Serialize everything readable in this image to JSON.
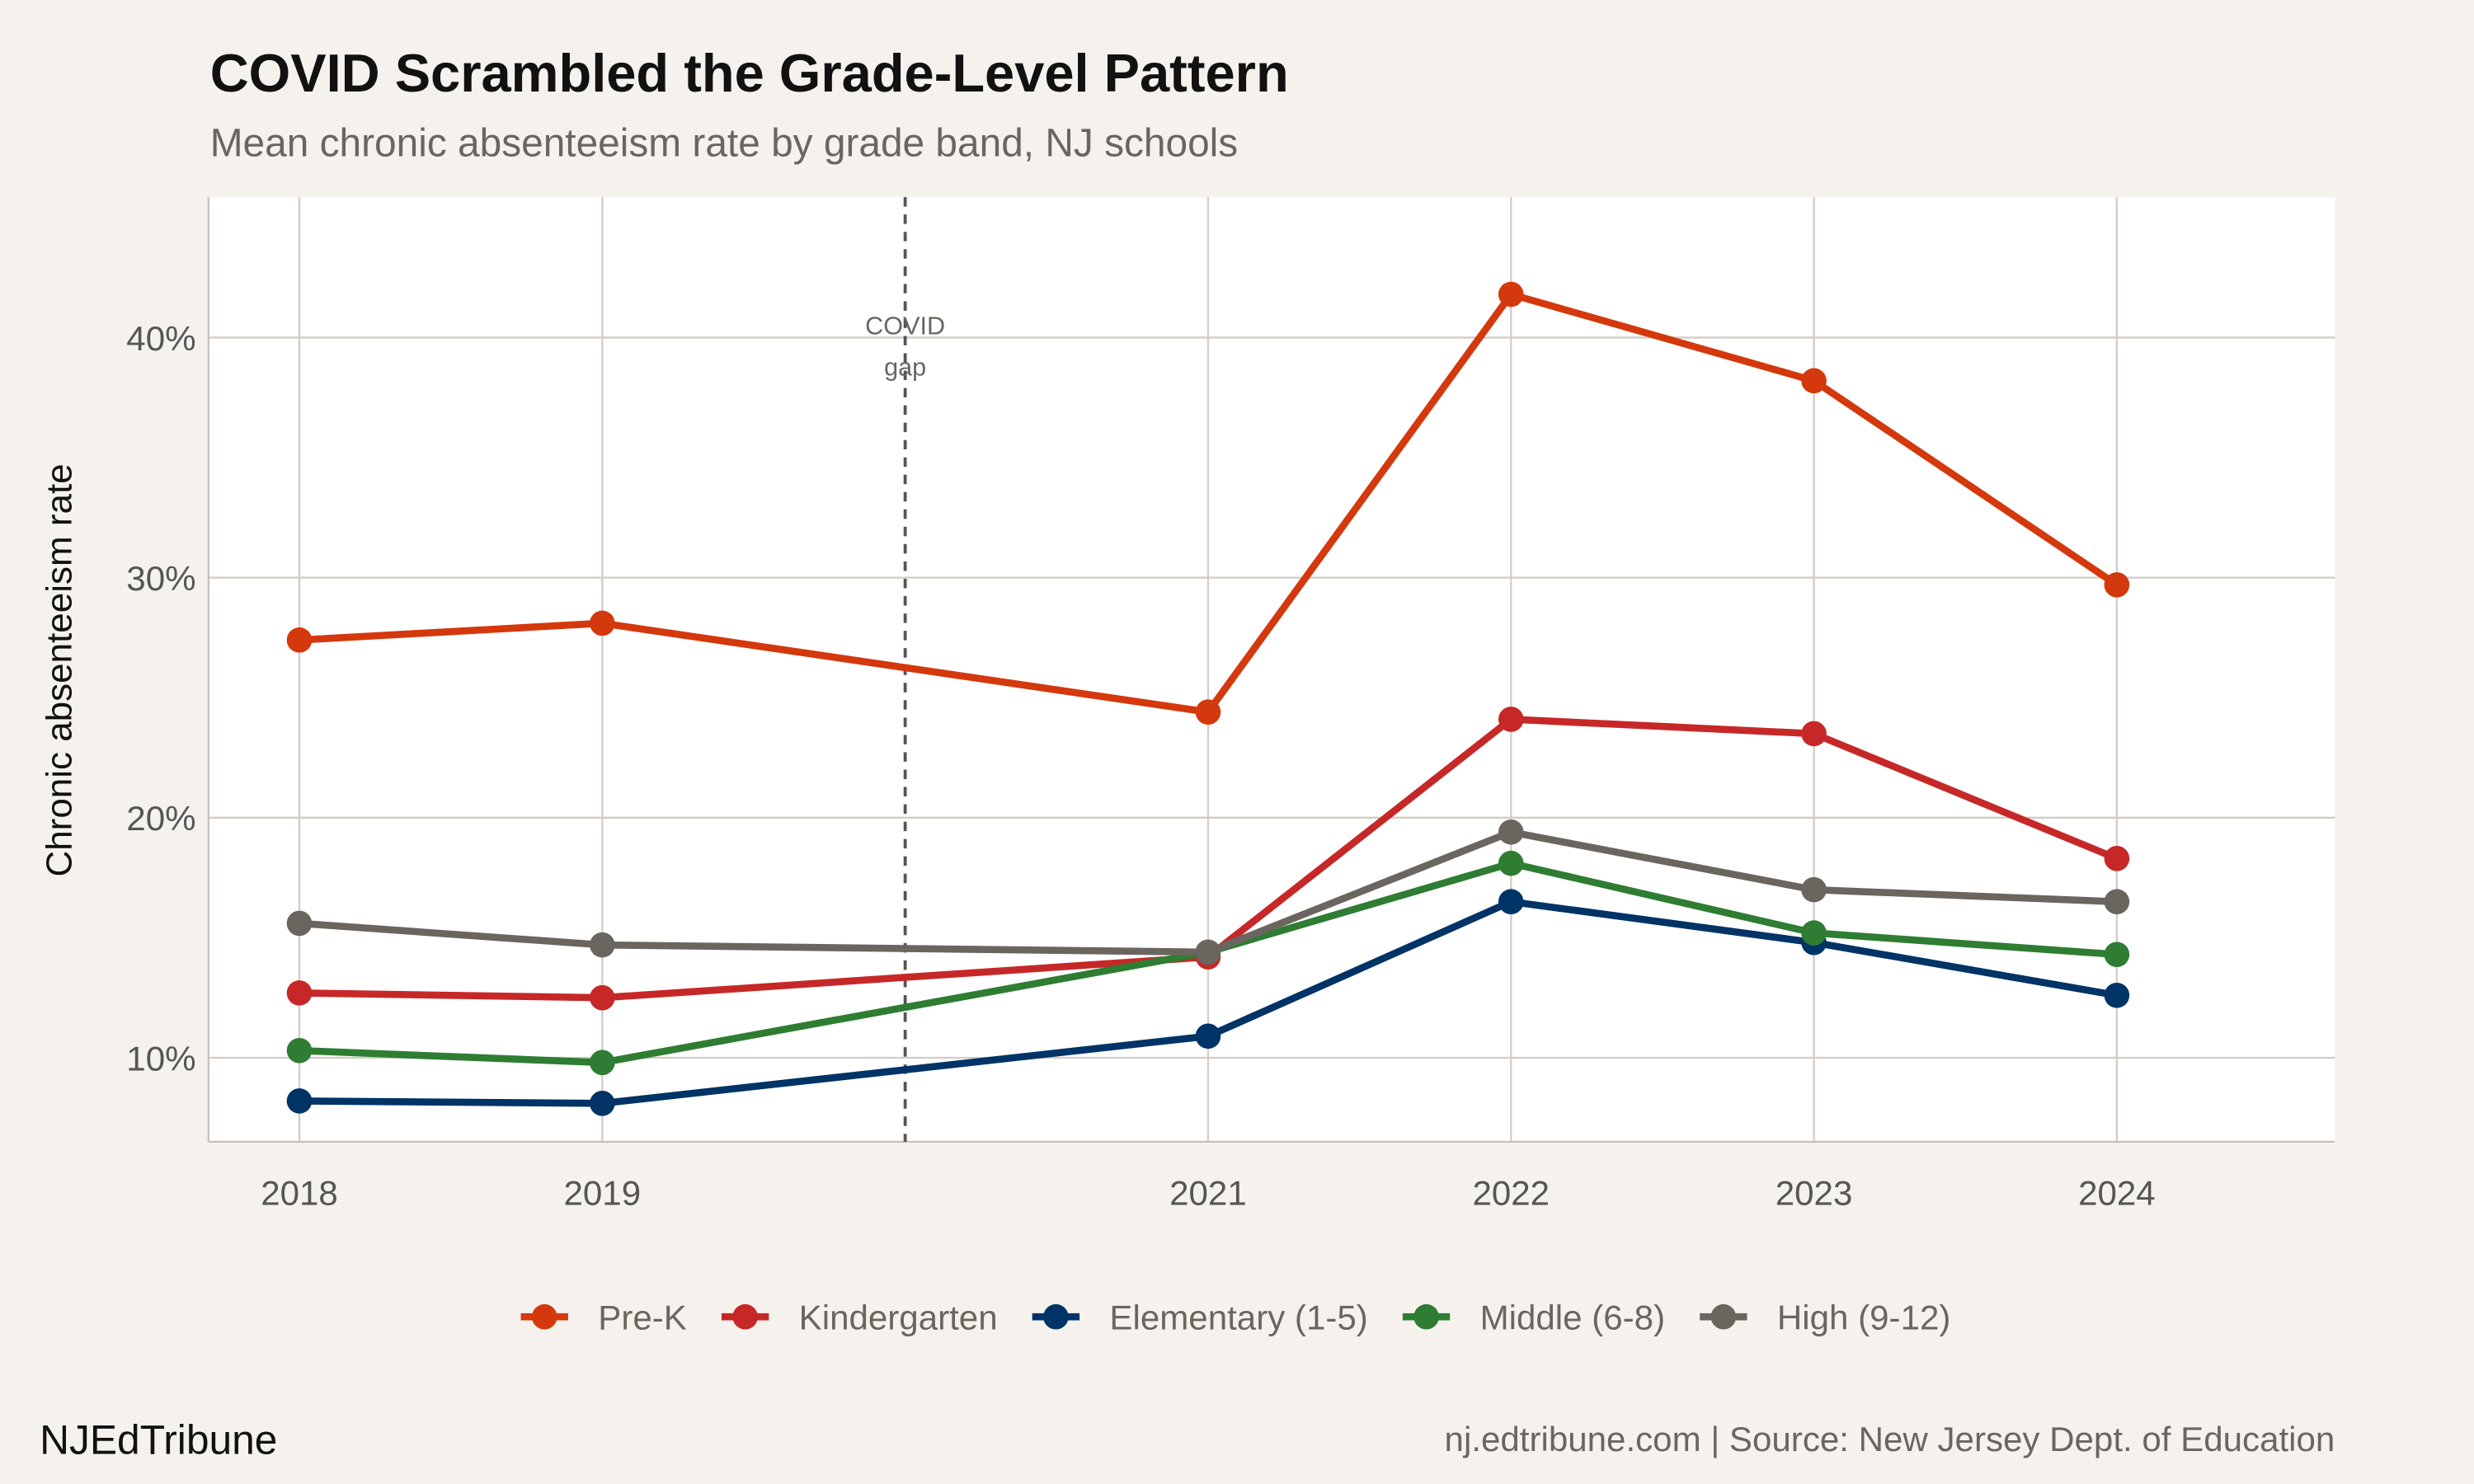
{
  "chart_data": {
    "type": "line",
    "title": "COVID Scrambled the Grade-Level Pattern",
    "subtitle": "Mean chronic absenteeism rate by grade band, NJ schools",
    "xlabel": "",
    "ylabel": "Chronic absenteeism rate",
    "x": [
      2018,
      2019,
      2021,
      2022,
      2023,
      2024
    ],
    "xticks": [
      "2018",
      "2019",
      "2021",
      "2022",
      "2023",
      "2024"
    ],
    "yticks": [
      10,
      20,
      30,
      40
    ],
    "ytick_labels": [
      "10%",
      "20%",
      "30%",
      "40%"
    ],
    "xlim": [
      2017.7,
      2024.72
    ],
    "ylim": [
      6.5,
      45.85
    ],
    "grid": true,
    "legend_position": "bottom",
    "annotation": {
      "x": 2020,
      "line1": "COVID",
      "line2": "gap"
    },
    "series": [
      {
        "name": "Pre-K",
        "color": "#d4380d",
        "values": [
          27.4,
          28.1,
          24.4,
          41.8,
          38.2,
          29.7
        ]
      },
      {
        "name": "Kindergarten",
        "color": "#c62828",
        "values": [
          12.7,
          12.5,
          14.2,
          24.1,
          23.5,
          18.3
        ]
      },
      {
        "name": "Elementary (1-5)",
        "color": "#003366",
        "values": [
          8.2,
          8.1,
          10.9,
          16.5,
          14.8,
          12.6
        ]
      },
      {
        "name": "Middle (6-8)",
        "color": "#2e7d32",
        "values": [
          10.3,
          9.8,
          14.4,
          18.1,
          15.2,
          14.3
        ]
      },
      {
        "name": "High (9-12)",
        "color": "#6b6560",
        "values": [
          15.6,
          14.7,
          14.4,
          19.4,
          17.0,
          16.5
        ]
      }
    ]
  },
  "footer": {
    "brand": "NJEdTribune",
    "source": "nj.edtribune.com | Source: New Jersey Dept. of Education"
  }
}
